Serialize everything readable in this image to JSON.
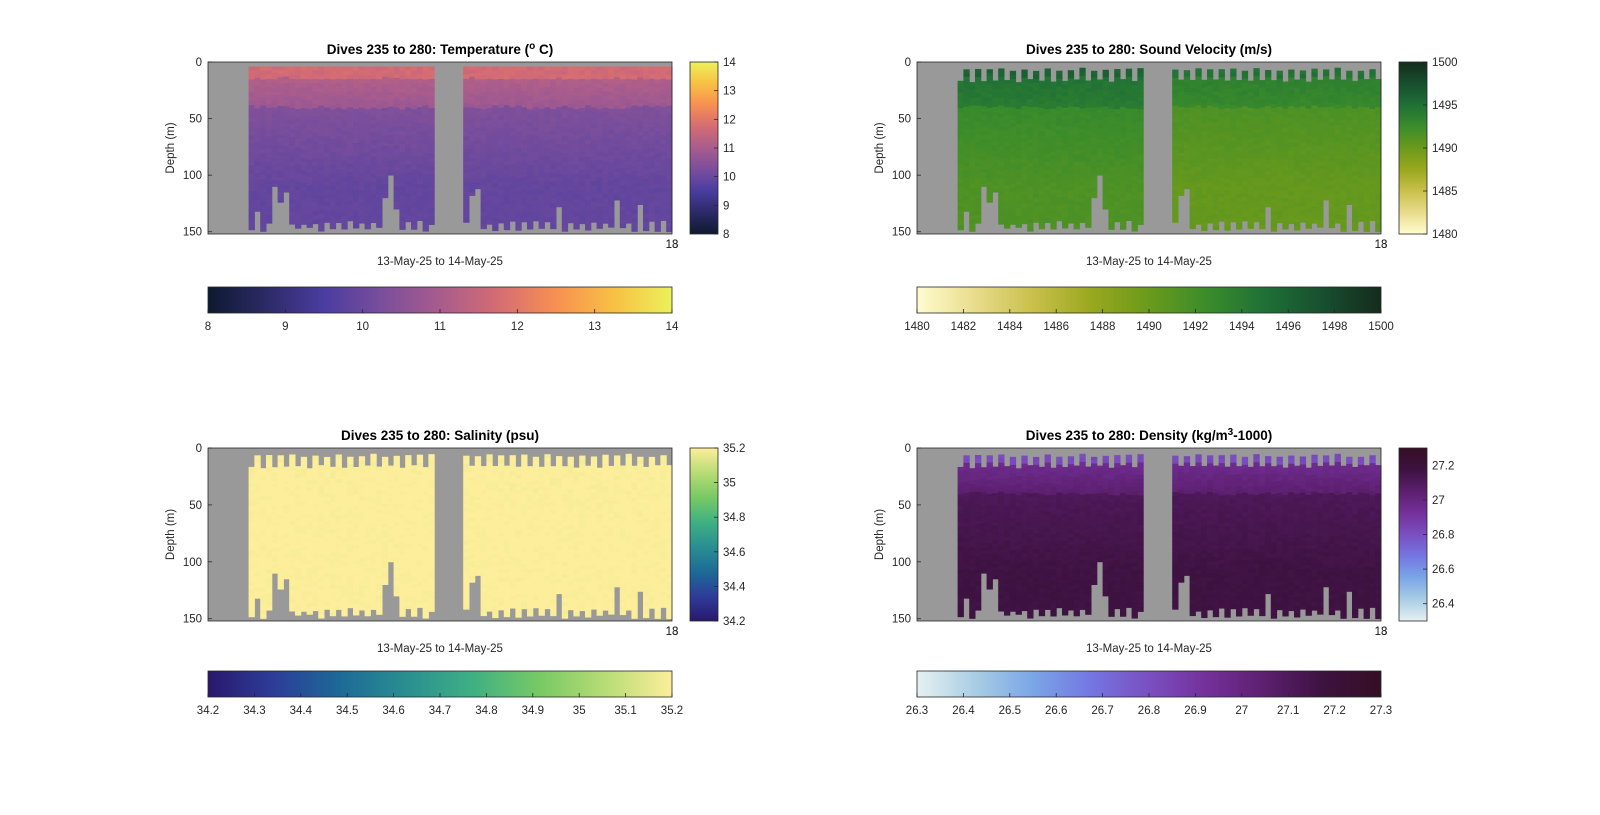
{
  "chart_data": [
    {
      "type": "heatmap",
      "title": "Dives 235 to 280: Temperature (",
      "title_sup": "o",
      "title_tail": " C)",
      "xlabel": "13-May-25 to 14-May-25",
      "ylabel": "Depth (m)",
      "y_ticks": [
        "0",
        "50",
        "100",
        "150"
      ],
      "ylim": [
        0,
        152
      ],
      "x_tick_label": "18",
      "x_tick_label_overlap": "13",
      "dive_range": [
        235,
        280
      ],
      "colormap": "thermal",
      "cmap_colors": [
        "#0d1a2f",
        "#2c2a66",
        "#4a3da0",
        "#7a4e9c",
        "#a85c8d",
        "#d46c73",
        "#f78f52",
        "#f8c044",
        "#ecf15a"
      ],
      "clim": [
        8,
        14
      ],
      "vertical_colorbar_ticks": [
        "8",
        "9",
        "10",
        "11",
        "12",
        "13",
        "14"
      ],
      "horizontal_colorbar_ticks": [
        "8",
        "9",
        "10",
        "11",
        "12",
        "13",
        "14"
      ],
      "surface_value": 11.7,
      "near_surface_value": 10.8,
      "deep_value": 9.9,
      "nan_color": "#999999"
    },
    {
      "type": "heatmap",
      "title": "Dives 235 to 280: Sound Velocity (m/s)",
      "title_sup": "",
      "title_tail": "",
      "xlabel": "13-May-25 to 14-May-25",
      "ylabel": "Depth (m)",
      "y_ticks": [
        "0",
        "50",
        "100",
        "150"
      ],
      "ylim": [
        0,
        152
      ],
      "x_tick_label": "18",
      "x_tick_label_overlap": "13",
      "dive_range": [
        235,
        280
      ],
      "colormap": "speed",
      "cmap_colors": [
        "#fffdd0",
        "#e8dc8c",
        "#c9c04c",
        "#9aa81e",
        "#6a9a1c",
        "#3b8c2b",
        "#1f7036",
        "#174f2f",
        "#152b1d"
      ],
      "clim": [
        1480,
        1500
      ],
      "vertical_colorbar_ticks": [
        "1480",
        "1485",
        "1490",
        "1495",
        "1500"
      ],
      "horizontal_colorbar_ticks": [
        "1480",
        "1482",
        "1484",
        "1486",
        "1488",
        "1490",
        "1492",
        "1494",
        "1496",
        "1498",
        "1500"
      ],
      "surface_value": 1496,
      "near_surface_value": 1494,
      "deep_value": 1491.5,
      "nan_color": "#999999"
    },
    {
      "type": "heatmap",
      "title": "Dives 235 to 280: Salinity (psu)",
      "title_sup": "",
      "title_tail": "",
      "xlabel": "13-May-25 to 14-May-25",
      "ylabel": "Depth (m)",
      "y_ticks": [
        "0",
        "50",
        "100",
        "150"
      ],
      "ylim": [
        0,
        152
      ],
      "x_tick_label": "18",
      "x_tick_label_overlap": "13",
      "dive_range": [
        235,
        280
      ],
      "colormap": "haline",
      "cmap_colors": [
        "#2a186c",
        "#2d3d99",
        "#1d6a97",
        "#2a8f91",
        "#3fb083",
        "#77c965",
        "#b8dc75",
        "#fdee9b"
      ],
      "clim": [
        34.2,
        35.2
      ],
      "vertical_colorbar_ticks": [
        "34.2",
        "34.4",
        "34.6",
        "34.8",
        "35",
        "35.2"
      ],
      "horizontal_colorbar_ticks": [
        "34.2",
        "34.3",
        "34.4",
        "34.5",
        "34.6",
        "34.7",
        "34.8",
        "34.9",
        "35",
        "35.1",
        "35.2"
      ],
      "surface_value": 35.2,
      "near_surface_value": 35.2,
      "deep_value": 35.2,
      "nan_color": "#999999"
    },
    {
      "type": "heatmap",
      "title": "Dives 235 to 280: Density (kg/m",
      "title_sup": "3",
      "title_tail": "-1000)",
      "xlabel": "13-May-25 to 14-May-25",
      "ylabel": "Depth (m)",
      "y_ticks": [
        "0",
        "50",
        "100",
        "150"
      ],
      "ylim": [
        0,
        152
      ],
      "x_tick_label": "18",
      "x_tick_label_overlap": "13",
      "dive_range": [
        235,
        280
      ],
      "colormap": "dense",
      "cmap_colors": [
        "#e6f1f1",
        "#a9cde4",
        "#7aa6e6",
        "#7476e2",
        "#7a4fc1",
        "#74309a",
        "#5c1f6e",
        "#3d1240",
        "#360e24"
      ],
      "clim": [
        26.3,
        27.3
      ],
      "vertical_colorbar_ticks": [
        "26.4",
        "26.6",
        "26.8",
        "27",
        "27.2"
      ],
      "horizontal_colorbar_ticks": [
        "26.3",
        "26.4",
        "26.5",
        "26.6",
        "26.7",
        "26.8",
        "26.9",
        "27",
        "27.1",
        "27.2",
        "27.3"
      ],
      "surface_value": 26.82,
      "near_surface_value": 27.05,
      "deep_value": 27.17,
      "nan_color": "#999999"
    }
  ]
}
